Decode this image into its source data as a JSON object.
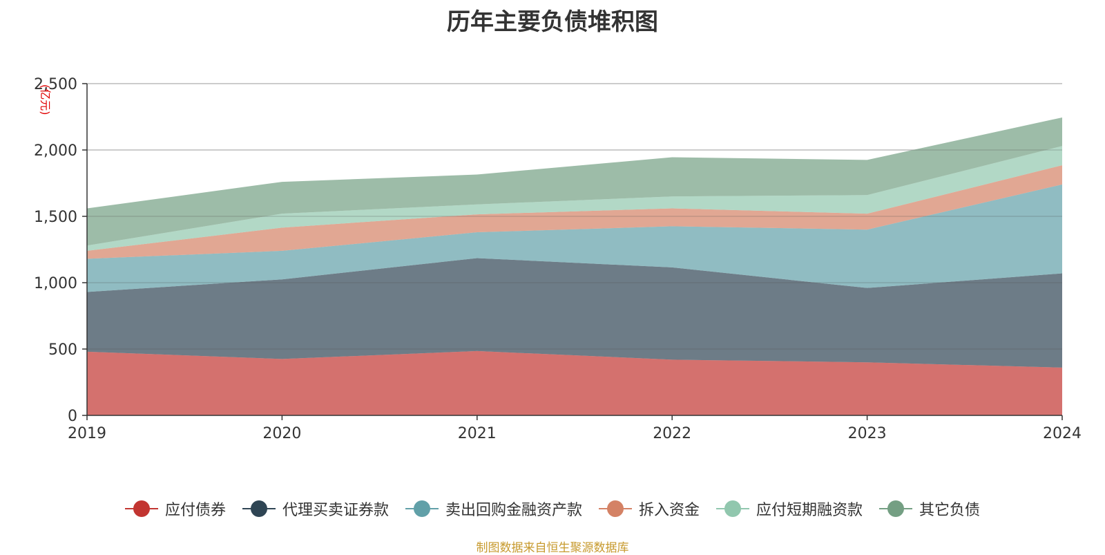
{
  "chart_data": {
    "type": "area",
    "title": "历年主要负债堆积图",
    "unit_label": "(亿元)",
    "categories": [
      "2019",
      "2020",
      "2021",
      "2022",
      "2023",
      "2024"
    ],
    "ylim": [
      0,
      2500
    ],
    "yticks": [
      0,
      500,
      1000,
      1500,
      2000,
      2500
    ],
    "ytick_labels": [
      "0",
      "500",
      "1,000",
      "1,500",
      "2,000",
      "2,500"
    ],
    "grid": true,
    "stacked": true,
    "legend_position": "bottom",
    "series": [
      {
        "name": "应付债券",
        "color": "#c23531",
        "values": [
          480,
          425,
          485,
          420,
          400,
          360
        ]
      },
      {
        "name": "代理买卖证券款",
        "color": "#2f4554",
        "values": [
          450,
          600,
          700,
          695,
          560,
          710
        ]
      },
      {
        "name": "卖出回购金融资产款",
        "color": "#61a0a8",
        "values": [
          250,
          215,
          195,
          310,
          440,
          670
        ]
      },
      {
        "name": "拆入资金",
        "color": "#d48265",
        "values": [
          60,
          175,
          135,
          135,
          120,
          145
        ]
      },
      {
        "name": "应付短期融资款",
        "color": "#91c7ae",
        "values": [
          40,
          105,
          75,
          90,
          140,
          145
        ]
      },
      {
        "name": "其它负债",
        "color": "#749f83",
        "values": [
          280,
          240,
          225,
          295,
          265,
          215
        ]
      }
    ]
  },
  "source_note": "制图数据来自恒生聚源数据库"
}
